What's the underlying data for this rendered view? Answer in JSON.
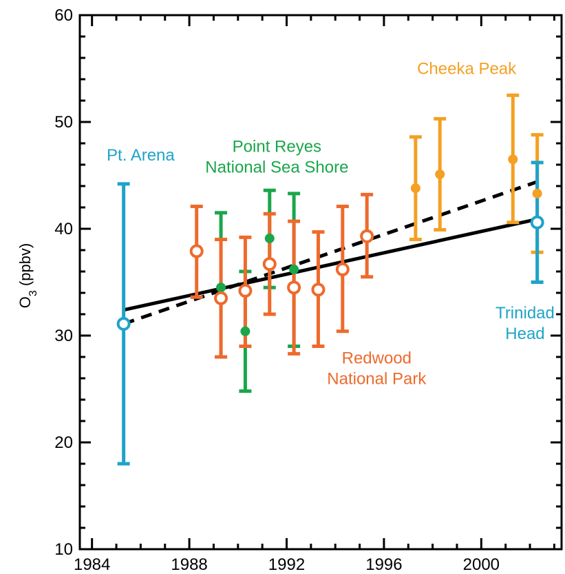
{
  "chart_data": {
    "type": "scatter",
    "title": "",
    "xlabel": "",
    "ylabel": {
      "main": "O",
      "sub": "3",
      "suffix": " (ppbv)"
    },
    "xlim": [
      1983.5,
      2003.3
    ],
    "ylim": [
      10,
      60
    ],
    "x_ticks": [
      1984,
      1988,
      1992,
      1996,
      2000
    ],
    "y_ticks": [
      10,
      20,
      30,
      40,
      50,
      60
    ],
    "grid": false,
    "series": [
      {
        "name": "Pt. Arena",
        "color": "#1fa3c9",
        "marker": "open-circle",
        "points": [
          {
            "x": 1985.3,
            "y": 31.1,
            "low": 18.0,
            "high": 44.2
          }
        ]
      },
      {
        "name": "Point Reyes National Sea Shore",
        "color": "#1aa64a",
        "marker": "filled-circle",
        "points": [
          {
            "x": 1989.3,
            "y": 34.5,
            "low": 28.0,
            "high": 41.5
          },
          {
            "x": 1990.3,
            "y": 30.4,
            "low": 24.8,
            "high": 36.0
          },
          {
            "x": 1991.3,
            "y": 39.1,
            "low": 34.5,
            "high": 43.6
          },
          {
            "x": 1992.3,
            "y": 36.2,
            "low": 29.0,
            "high": 43.3
          }
        ]
      },
      {
        "name": "Redwood National Park",
        "color": "#ee6a2c",
        "marker": "open-circle",
        "points": [
          {
            "x": 1988.3,
            "y": 37.9,
            "low": 33.6,
            "high": 42.1
          },
          {
            "x": 1989.3,
            "y": 33.5,
            "low": 28.0,
            "high": 39.0
          },
          {
            "x": 1990.3,
            "y": 34.2,
            "low": 29.0,
            "high": 39.2
          },
          {
            "x": 1991.3,
            "y": 36.7,
            "low": 32.0,
            "high": 41.4
          },
          {
            "x": 1992.3,
            "y": 34.5,
            "low": 28.3,
            "high": 40.7
          },
          {
            "x": 1993.3,
            "y": 34.3,
            "low": 29.0,
            "high": 39.7
          },
          {
            "x": 1994.3,
            "y": 36.2,
            "low": 30.4,
            "high": 42.1
          },
          {
            "x": 1995.3,
            "y": 39.3,
            "low": 35.5,
            "high": 43.2
          }
        ]
      },
      {
        "name": "Cheeka Peak",
        "color": "#f4a024",
        "marker": "filled-circle",
        "points": [
          {
            "x": 1997.3,
            "y": 43.8,
            "low": 39.0,
            "high": 48.6
          },
          {
            "x": 1998.3,
            "y": 45.1,
            "low": 39.9,
            "high": 50.3
          },
          {
            "x": 2001.3,
            "y": 46.5,
            "low": 40.6,
            "high": 52.5
          },
          {
            "x": 2002.3,
            "y": 43.3,
            "low": 37.8,
            "high": 48.8
          }
        ]
      },
      {
        "name": "Trinidad Head",
        "color": "#1fa3c9",
        "marker": "open-circle",
        "points": [
          {
            "x": 2002.3,
            "y": 40.6,
            "low": 35.0,
            "high": 46.2
          }
        ]
      }
    ],
    "trend_lines": [
      {
        "style": "solid",
        "color": "#000000",
        "x": [
          1985.3,
          2002.3
        ],
        "y": [
          32.4,
          40.9
        ]
      },
      {
        "style": "dashed",
        "color": "#000000",
        "x": [
          1985.3,
          2002.3
        ],
        "y": [
          31.1,
          44.4
        ]
      }
    ],
    "annotations": [
      {
        "lines": [
          "Pt. Arena"
        ],
        "color": "#1fa3c9",
        "x": 1986.0,
        "y": 46.4,
        "anchor": "middle"
      },
      {
        "lines": [
          "Point Reyes",
          "National Sea Shore"
        ],
        "color": "#1aa64a",
        "x": 1991.6,
        "y": 47.2,
        "anchor": "middle"
      },
      {
        "lines": [
          "Cheeka Peak"
        ],
        "color": "#f4a024",
        "x": 1999.4,
        "y": 54.5,
        "anchor": "middle"
      },
      {
        "lines": [
          "Redwood",
          "National Park"
        ],
        "color": "#ee6a2c",
        "x": 1995.7,
        "y": 27.4,
        "anchor": "middle"
      },
      {
        "lines": [
          "Trinidad",
          "Head"
        ],
        "color": "#1fa3c9",
        "x": 2001.8,
        "y": 31.6,
        "anchor": "middle"
      }
    ]
  }
}
